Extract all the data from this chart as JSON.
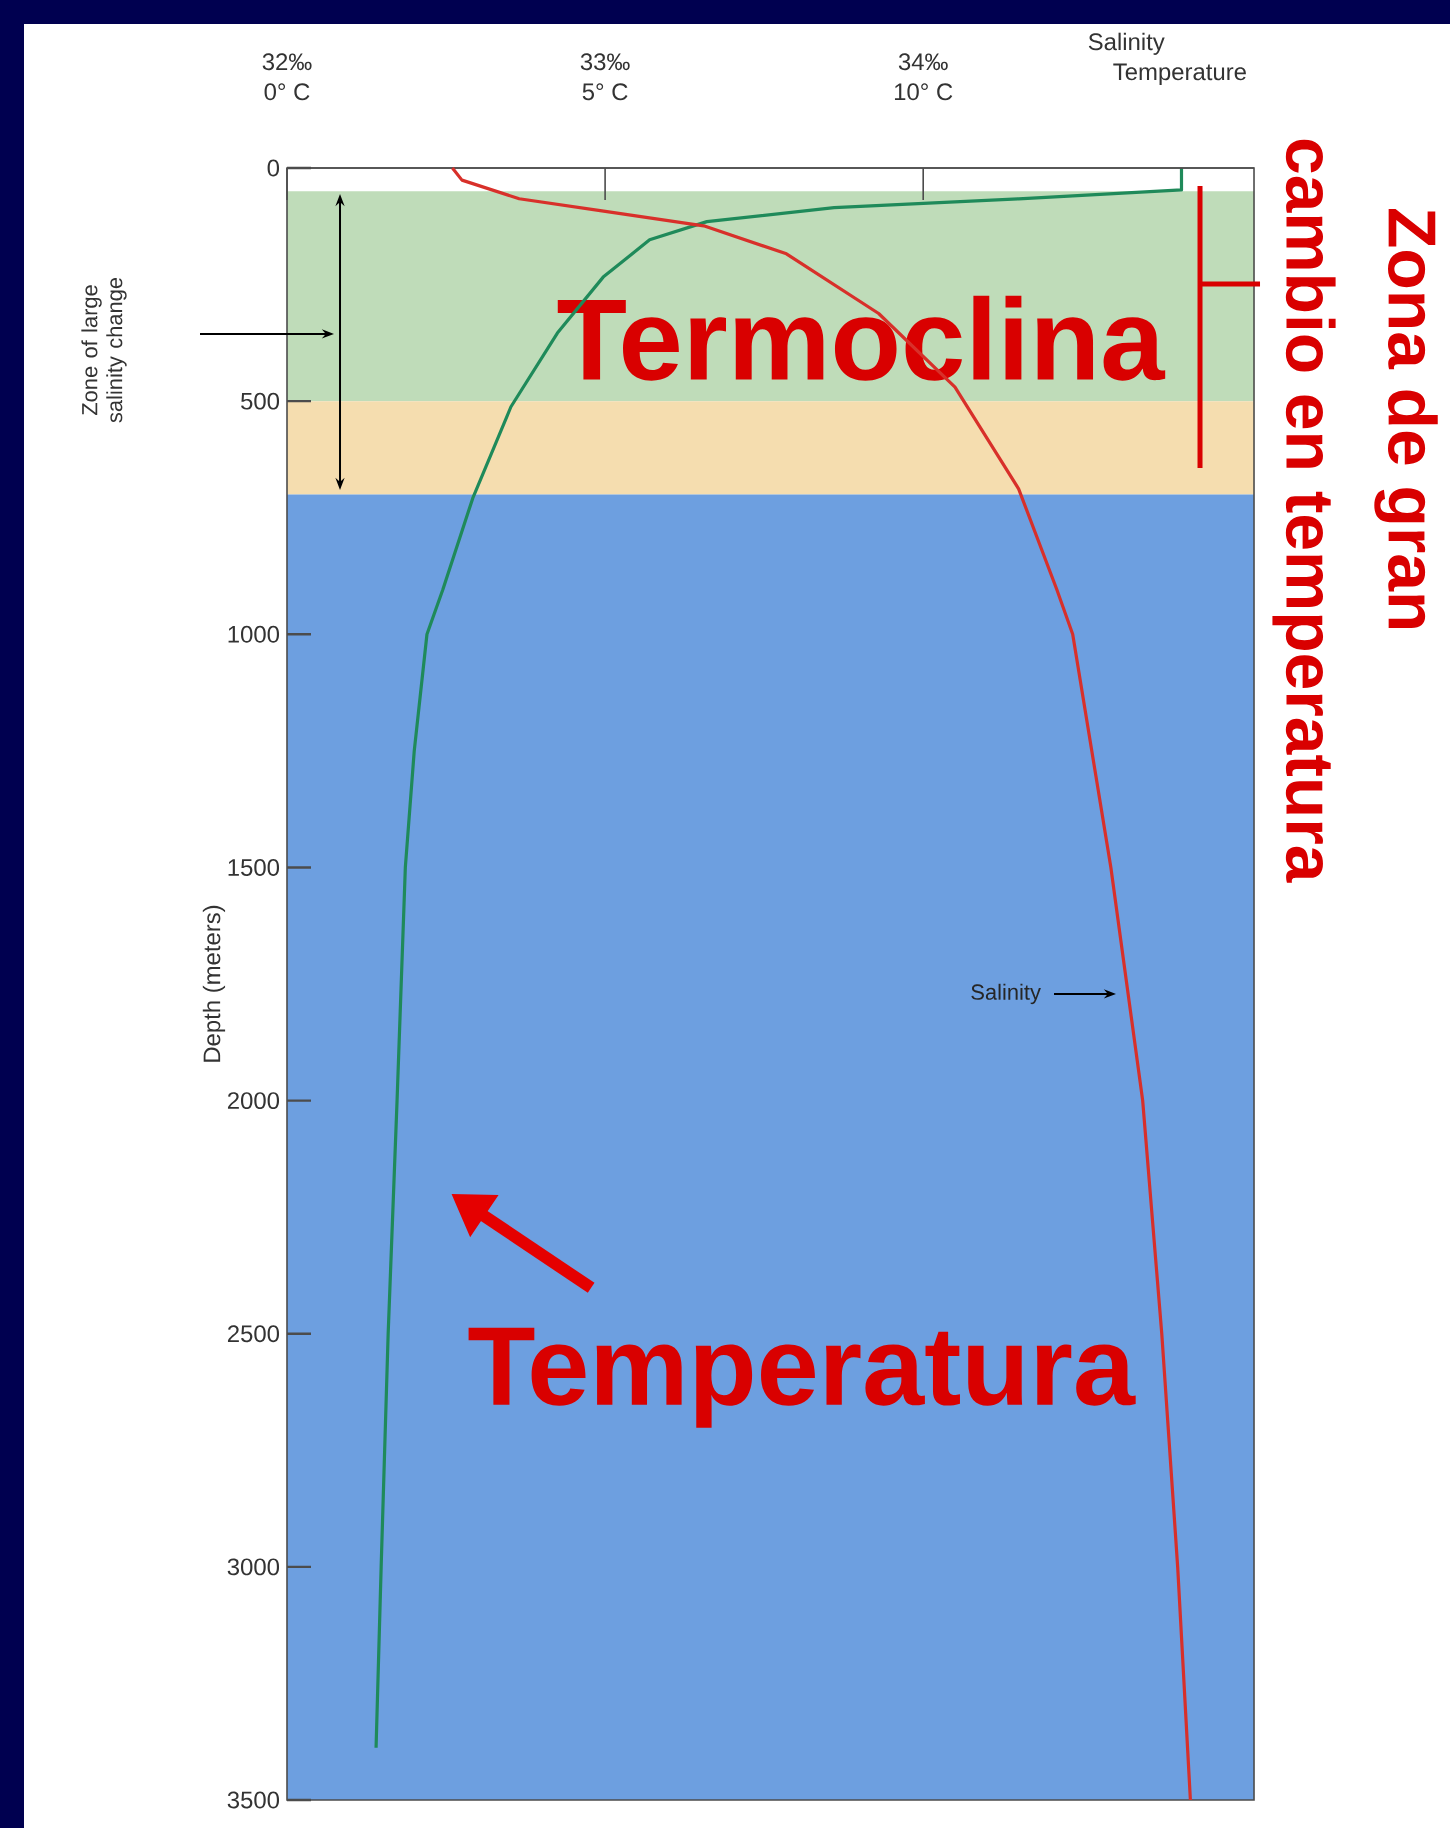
{
  "chart_data": {
    "type": "line",
    "xlabel": "Temperature",
    "x2label": "Salinity",
    "ylabel": "Depth (meters)",
    "xlim": [
      0,
      15.2
    ],
    "xticks": [
      {
        "value": 0,
        "label": "0° C"
      },
      {
        "value": 5,
        "label": "5° C"
      },
      {
        "value": 10,
        "label": "10° C"
      }
    ],
    "x2lim": [
      32,
      35.04
    ],
    "x2ticks": [
      {
        "value": 32,
        "label": "32‰"
      },
      {
        "value": 33,
        "label": "33‰"
      },
      {
        "value": 34,
        "label": "34‰"
      }
    ],
    "ylim": [
      3500,
      0
    ],
    "yticks": [
      0,
      500,
      1000,
      1500,
      2000,
      2500,
      3000,
      3500
    ],
    "series": [
      {
        "color": "#1f8a5a",
        "x": [
          14.06,
          14.06,
          11.5,
          8.6,
          6.6,
          5.7,
          4.97,
          4.25,
          3.52,
          2.92,
          2.45,
          2.2,
          2.0,
          1.86,
          1.73,
          1.59,
          1.48,
          1.4
        ],
        "values": [
          0,
          47,
          66,
          85,
          115,
          154,
          234,
          354,
          512,
          708,
          904,
          1000,
          1250,
          1500,
          2000,
          2500,
          3000,
          3388
        ]
      },
      {
        "color": "#d8302a",
        "axis": "x2",
        "x": [
          32.52,
          32.55,
          32.73,
          32.99,
          33.31,
          33.57,
          33.86,
          34.1,
          34.3,
          34.42,
          34.47,
          34.59,
          34.69,
          34.75,
          34.8,
          34.84
        ],
        "values": [
          0,
          26,
          66,
          92,
          124,
          184,
          312,
          470,
          688,
          904,
          1000,
          1500,
          2000,
          2500,
          3000,
          3500
        ]
      }
    ],
    "bands": [
      {
        "axis": "y",
        "from": 50,
        "to": 500,
        "color": "#bfdcb9",
        "label": "Termoclina"
      },
      {
        "axis": "y",
        "from": 500,
        "to": 700,
        "color": "#f5ddaf"
      },
      {
        "axis": "y",
        "from": 700,
        "to": 3500,
        "color": "#6d9fe0"
      }
    ],
    "annotations": [
      "Zone of large salinity change",
      "Zona de gran",
      "cambio en temperatura",
      {
        "text": "Temperatura",
        "x": 1.7,
        "y": 2200
      },
      "Salinity"
    ],
    "marker": "none",
    "line_style": "solid"
  }
}
